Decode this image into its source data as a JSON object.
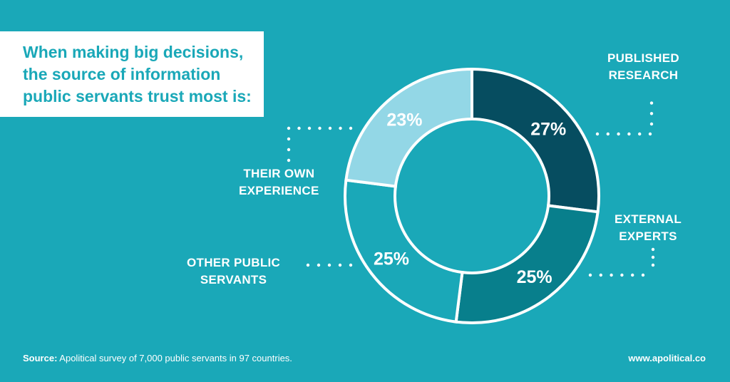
{
  "title": {
    "lines": [
      "When making big decisions,",
      "the source of information",
      "public servants trust most is:"
    ]
  },
  "labels": {
    "published_research": [
      "PUBLISHED",
      "RESEARCH"
    ],
    "external_experts": [
      "EXTERNAL",
      "EXPERTS"
    ],
    "other_public_servants": [
      "OTHER PUBLIC",
      "SERVANTS"
    ],
    "their_own_experience": [
      "THEIR OWN",
      "EXPERIENCE"
    ]
  },
  "footer": {
    "source_label": "Source:",
    "source_text": " Apolitical survey of 7,000 public servants in 97 countries.",
    "website": "www.apolitical.co"
  },
  "colors": {
    "background": "#1aa8b8",
    "published_research": "#064d60",
    "external_experts": "#087f8c",
    "other_public_servants": "#1aa8b8",
    "their_own_experience": "#93d7e6",
    "separator": "#ffffff"
  },
  "chart_data": {
    "type": "pie",
    "style": "donut",
    "slices": [
      {
        "label": "PUBLISHED RESEARCH",
        "value": 27,
        "display": "27%",
        "color": "#064d60"
      },
      {
        "label": "EXTERNAL EXPERTS",
        "value": 25,
        "display": "25%",
        "color": "#087f8c"
      },
      {
        "label": "OTHER PUBLIC SERVANTS",
        "value": 25,
        "display": "25%",
        "color": "#1aa8b8"
      },
      {
        "label": "THEIR OWN EXPERIENCE",
        "value": 23,
        "display": "23%",
        "color": "#93d7e6"
      }
    ],
    "start_angle": "12 o'clock",
    "direction": "clockwise"
  }
}
